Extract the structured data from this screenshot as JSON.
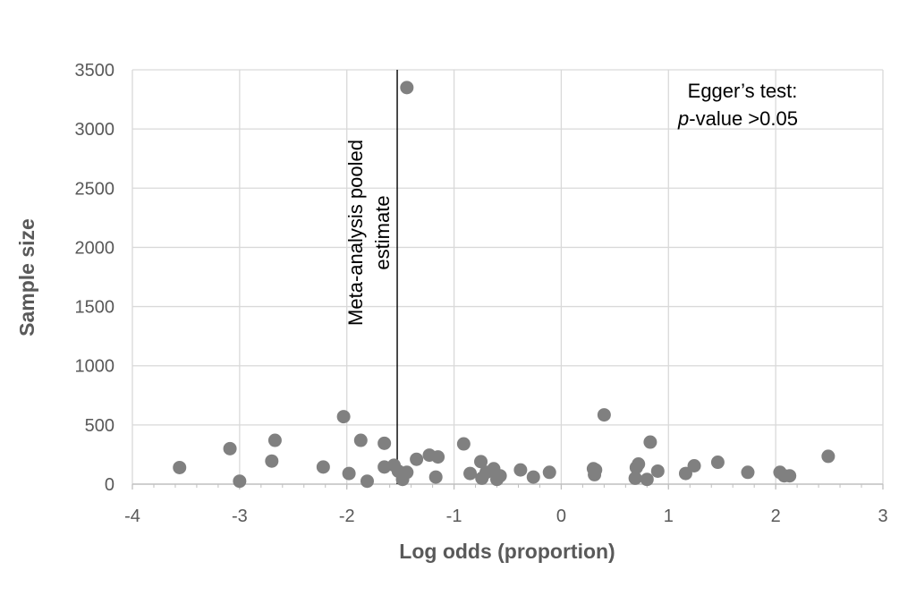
{
  "chart_data": {
    "type": "scatter",
    "title": "",
    "xlabel": "Log odds (proportion)",
    "ylabel": "Sample size",
    "xlim": [
      -4,
      3
    ],
    "ylim": [
      0,
      3500
    ],
    "xticks": [
      -4,
      -3,
      -2,
      -1,
      0,
      1,
      2,
      3
    ],
    "yticks": [
      0,
      500,
      1000,
      1500,
      2000,
      2500,
      3000,
      3500
    ],
    "x_tick_labels": [
      "-4",
      "-3",
      "-2",
      "-1",
      "0",
      "1",
      "2",
      "3"
    ],
    "y_tick_labels": [
      "0",
      "500",
      "1000",
      "1500",
      "2000",
      "2500",
      "3000",
      "3500"
    ],
    "grid": true,
    "marker_color": "#808080",
    "gridline_color": "#d9d9d9",
    "pooled_estimate_x": -1.53,
    "pooled_estimate_label": [
      "Meta-analysis pooled",
      "estimate"
    ],
    "annotation_line1": "Egger’s test:",
    "annotation_p": "p",
    "annotation_rest": "-value >0.05",
    "points": [
      {
        "x": -3.56,
        "y": 140
      },
      {
        "x": -3.09,
        "y": 300
      },
      {
        "x": -3.0,
        "y": 25
      },
      {
        "x": -2.7,
        "y": 195
      },
      {
        "x": -2.67,
        "y": 370
      },
      {
        "x": -2.22,
        "y": 145
      },
      {
        "x": -2.03,
        "y": 570
      },
      {
        "x": -1.98,
        "y": 90
      },
      {
        "x": -1.87,
        "y": 370
      },
      {
        "x": -1.81,
        "y": 25
      },
      {
        "x": -1.65,
        "y": 345
      },
      {
        "x": -1.65,
        "y": 145
      },
      {
        "x": -1.56,
        "y": 160
      },
      {
        "x": -1.52,
        "y": 110
      },
      {
        "x": -1.48,
        "y": 40
      },
      {
        "x": -1.44,
        "y": 100
      },
      {
        "x": -1.44,
        "y": 3350
      },
      {
        "x": -1.35,
        "y": 210
      },
      {
        "x": -1.23,
        "y": 245
      },
      {
        "x": -1.17,
        "y": 60
      },
      {
        "x": -1.15,
        "y": 230
      },
      {
        "x": -0.91,
        "y": 340
      },
      {
        "x": -0.85,
        "y": 90
      },
      {
        "x": -0.75,
        "y": 190
      },
      {
        "x": -0.74,
        "y": 50
      },
      {
        "x": -0.7,
        "y": 100
      },
      {
        "x": -0.63,
        "y": 130
      },
      {
        "x": -0.6,
        "y": 40
      },
      {
        "x": -0.57,
        "y": 70
      },
      {
        "x": -0.38,
        "y": 120
      },
      {
        "x": -0.26,
        "y": 60
      },
      {
        "x": -0.11,
        "y": 100
      },
      {
        "x": 0.3,
        "y": 130
      },
      {
        "x": 0.31,
        "y": 80
      },
      {
        "x": 0.32,
        "y": 120
      },
      {
        "x": 0.4,
        "y": 585
      },
      {
        "x": 0.69,
        "y": 50
      },
      {
        "x": 0.7,
        "y": 140
      },
      {
        "x": 0.72,
        "y": 170
      },
      {
        "x": 0.8,
        "y": 40
      },
      {
        "x": 0.83,
        "y": 355
      },
      {
        "x": 0.9,
        "y": 110
      },
      {
        "x": 1.16,
        "y": 90
      },
      {
        "x": 1.24,
        "y": 155
      },
      {
        "x": 1.46,
        "y": 185
      },
      {
        "x": 1.74,
        "y": 100
      },
      {
        "x": 2.04,
        "y": 100
      },
      {
        "x": 2.08,
        "y": 70
      },
      {
        "x": 2.13,
        "y": 70
      },
      {
        "x": 2.49,
        "y": 235
      }
    ]
  }
}
